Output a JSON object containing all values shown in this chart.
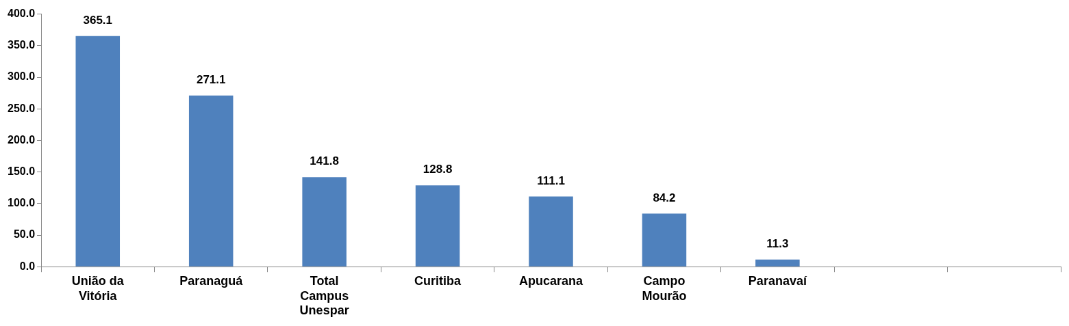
{
  "chart_data": {
    "type": "bar",
    "categories": [
      "União da Vitória",
      "Paranaguá",
      "Total Campus Unespar",
      "Curitiba",
      "Apucarana",
      "Campo Mourão",
      "Paranavaí",
      null,
      null
    ],
    "values": [
      365.1,
      271.1,
      141.8,
      128.8,
      111.1,
      84.2,
      11.3,
      null,
      null
    ],
    "color": "#4f81bd",
    "ylim": [
      0,
      400
    ],
    "yticks": [
      {
        "value": 0,
        "label": "0.0"
      },
      {
        "value": 50,
        "label": "50.0"
      },
      {
        "value": 100,
        "label": "100.0"
      },
      {
        "value": 150,
        "label": "150.0"
      },
      {
        "value": 200,
        "label": "200.0"
      },
      {
        "value": 250,
        "label": "250.0"
      },
      {
        "value": 300,
        "label": "300.0"
      },
      {
        "value": 350,
        "label": "350.0"
      },
      {
        "value": 400,
        "label": "400.0"
      }
    ],
    "grid": false,
    "legend": false,
    "data_labels": true
  }
}
